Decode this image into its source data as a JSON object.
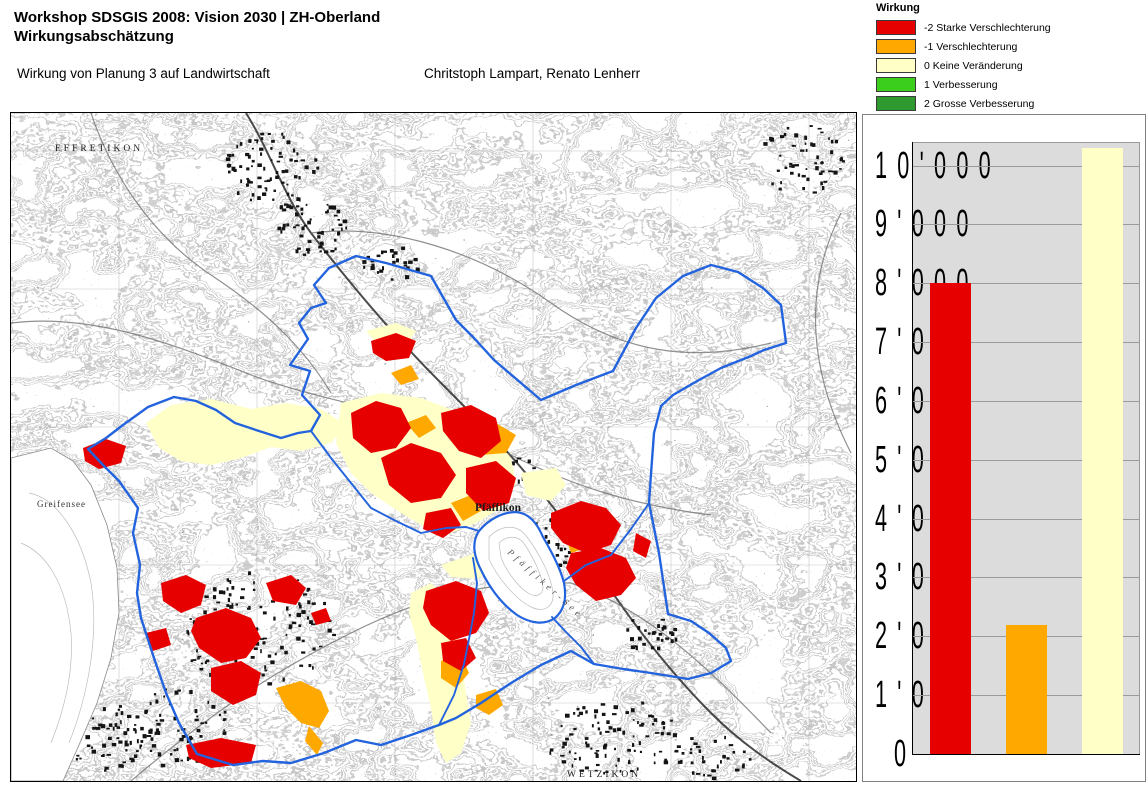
{
  "header": {
    "title_line1": "Workshop SDSGIS 2008: Vision 2030 | ZH-Oberland",
    "title_line2": "Wirkungsabschätzung",
    "subtitle": "Wirkung von Planung 3 auf Landwirtschaft",
    "authors": "Chritstoph Lampart, Renato Lenherr"
  },
  "legend": {
    "title": "Wirkung",
    "items": [
      {
        "value": "-2",
        "label": "-2 Starke Verschlechterung",
        "color": "#e60000"
      },
      {
        "value": "-1",
        "label": "-1 Verschlechterung",
        "color": "#ffa800"
      },
      {
        "value": "0",
        "label": "0 Keine Veränderung",
        "color": "#ffffc8"
      },
      {
        "value": "1",
        "label": "1 Verbesserung",
        "color": "#3bce1c"
      },
      {
        "value": "2",
        "label": "2 Grosse Verbesserung",
        "color": "#2e992e"
      }
    ]
  },
  "map": {
    "boundary_color": "#2363dd",
    "labels": {
      "effretikon": "EFFRETIKON",
      "pfaeffikon": "Pfäffikon",
      "pfaeffikersee": "Pfäffiker-See",
      "greifensee": "Greifensee",
      "wetzikon": "WETZIKON"
    }
  },
  "chart_data": {
    "type": "bar",
    "categories": [
      "-2 Starke Verschlechterung",
      "-1 Verschlechterung",
      "0 Keine Veränderung"
    ],
    "values": [
      8000,
      2200,
      10300
    ],
    "colors": [
      "#e60000",
      "#ffa800",
      "#ffffc8"
    ],
    "title": "",
    "xlabel": "",
    "ylabel": "",
    "ylim": [
      0,
      10400
    ],
    "y_tick_interval": 1000,
    "y_ticks": [
      "0",
      "1'000",
      "2'000",
      "3'000",
      "4'000",
      "5'000",
      "6'000",
      "7'000",
      "8'000",
      "9'000",
      "10'000"
    ],
    "grid": true,
    "legend_position": "top-right-of-page",
    "plot_bg": "#dcdcdc",
    "gridline_color": "#9a9a9a"
  }
}
